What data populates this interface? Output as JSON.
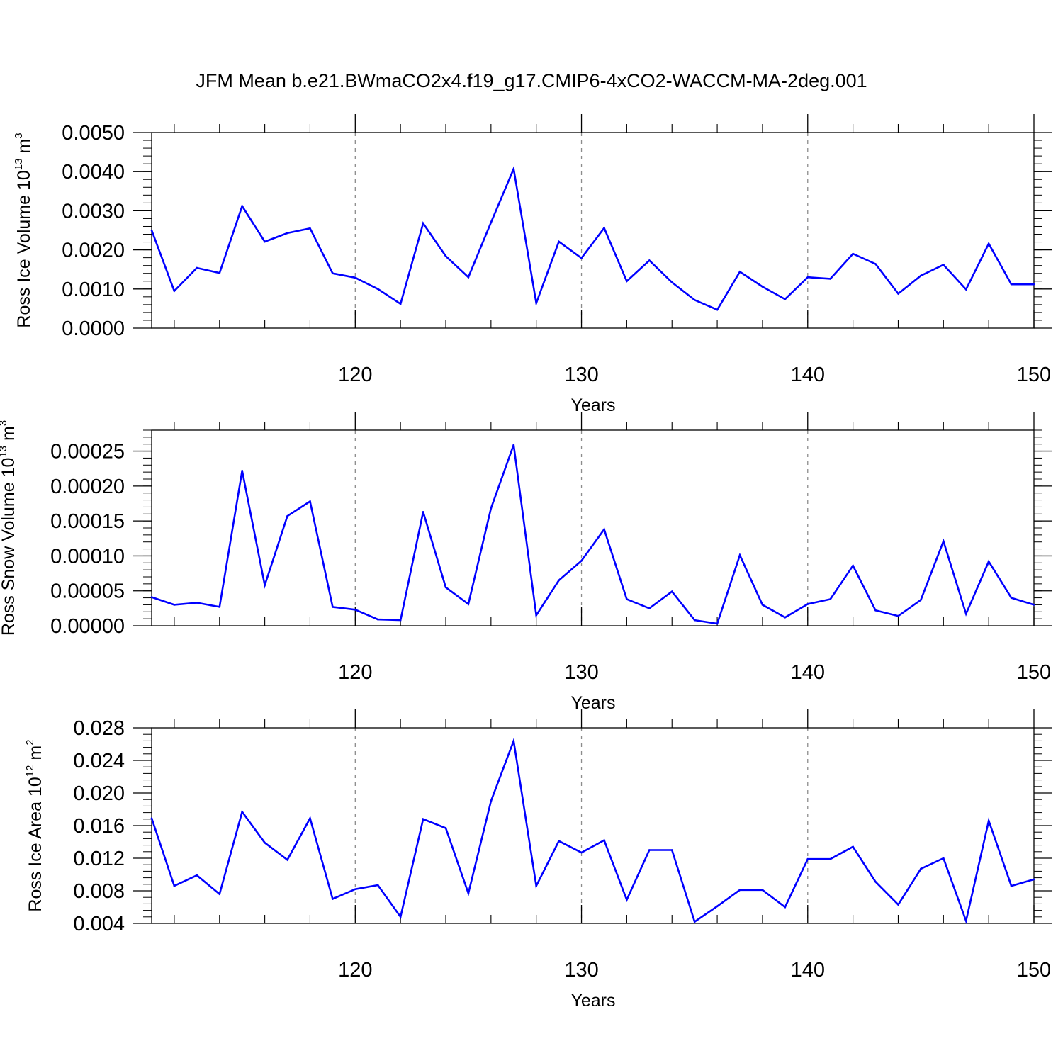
{
  "figure": {
    "title": "JFM Mean b.e21.BWmaCO2x4.f19_g17.CMIP6-4xCO2-WACCM-MA-2deg.001"
  },
  "colors": {
    "line": "#0000ff",
    "axis": "#000000",
    "grid": "#8c8c8c"
  },
  "chart_data": [
    {
      "type": "line",
      "xlabel": "Years",
      "ylabel": {
        "prefix": "Ross Ice Volume 10",
        "exp": "13",
        "unit": " m",
        "unit_exp": "3"
      },
      "xlim": [
        111,
        150
      ],
      "ylim": [
        0,
        0.005
      ],
      "x_ticks": [
        "120",
        "130",
        "140",
        "150"
      ],
      "y_ticks": [
        "0.0000",
        "0.0010",
        "0.0020",
        "0.0030",
        "0.0040",
        "0.0050"
      ],
      "grid": "dashed vertical at major x ticks",
      "x": [
        111,
        112,
        113,
        114,
        115,
        116,
        117,
        118,
        119,
        120,
        121,
        122,
        123,
        124,
        125,
        126,
        127,
        128,
        129,
        130,
        131,
        132,
        133,
        134,
        135,
        136,
        137,
        138,
        139,
        140,
        141,
        142,
        143,
        144,
        145,
        146,
        147,
        148,
        149,
        150
      ],
      "values": [
        0.0025,
        0.00095,
        0.00154,
        0.00141,
        0.00312,
        0.00221,
        0.00243,
        0.00255,
        0.0014,
        0.00129,
        0.001,
        0.00062,
        0.00268,
        0.00184,
        0.0013,
        0.0027,
        0.00407,
        0.00064,
        0.00221,
        0.00179,
        0.00256,
        0.0012,
        0.00173,
        0.00117,
        0.00072,
        0.00047,
        0.00144,
        0.00106,
        0.00074,
        0.0013,
        0.00126,
        0.0019,
        0.00164,
        0.00088,
        0.00134,
        0.00162,
        0.00099,
        0.00216,
        0.00112,
        0.00112
      ]
    },
    {
      "type": "line",
      "xlabel": "Years",
      "ylabel": {
        "prefix": "Ross Snow Volume 10",
        "exp": "13",
        "unit": " m",
        "unit_exp": "3"
      },
      "xlim": [
        111,
        150
      ],
      "ylim": [
        0,
        0.00028
      ],
      "x_ticks": [
        "120",
        "130",
        "140",
        "150"
      ],
      "y_ticks": [
        "0.00000",
        "0.00005",
        "0.00010",
        "0.00015",
        "0.00020",
        "0.00025"
      ],
      "y_tick_values": [
        0,
        5e-05,
        0.0001,
        0.00015,
        0.0002,
        0.00025
      ],
      "grid": "dashed vertical at major x ticks",
      "x": [
        111,
        112,
        113,
        114,
        115,
        116,
        117,
        118,
        119,
        120,
        121,
        122,
        123,
        124,
        125,
        126,
        127,
        128,
        129,
        130,
        131,
        132,
        133,
        134,
        135,
        136,
        137,
        138,
        139,
        140,
        141,
        142,
        143,
        144,
        145,
        146,
        147,
        148,
        149,
        150
      ],
      "values": [
        4.1e-05,
        3e-05,
        3.3e-05,
        2.7e-05,
        0.000222,
        5.8e-05,
        0.000157,
        0.000178,
        2.7e-05,
        2.3e-05,
        9e-06,
        8e-06,
        0.000163,
        5.5e-05,
        3.1e-05,
        0.000168,
        0.000259,
        1.5e-05,
        6.5e-05,
        9.3e-05,
        0.000138,
        3.8e-05,
        2.5e-05,
        4.9e-05,
        8e-06,
        3e-06,
        0.000101,
        3e-05,
        1.2e-05,
        3.1e-05,
        3.8e-05,
        8.6e-05,
        2.2e-05,
        1.4e-05,
        3.7e-05,
        0.000121,
        1.7e-05,
        9.2e-05,
        4e-05,
        3e-05
      ]
    },
    {
      "type": "line",
      "xlabel": "Years",
      "ylabel": {
        "prefix": "Ross Ice Area 10",
        "exp": "12",
        "unit": " m",
        "unit_exp": "2"
      },
      "xlim": [
        111,
        150
      ],
      "ylim": [
        0.004,
        0.028
      ],
      "x_ticks": [
        "120",
        "130",
        "140",
        "150"
      ],
      "y_ticks": [
        "0.004",
        "0.008",
        "0.012",
        "0.016",
        "0.020",
        "0.024",
        "0.028"
      ],
      "grid": "dashed vertical at major x ticks",
      "x": [
        111,
        112,
        113,
        114,
        115,
        116,
        117,
        118,
        119,
        120,
        121,
        122,
        123,
        124,
        125,
        126,
        127,
        128,
        129,
        130,
        131,
        132,
        133,
        134,
        135,
        136,
        137,
        138,
        139,
        140,
        141,
        142,
        143,
        144,
        145,
        146,
        147,
        148,
        149,
        150
      ],
      "values": [
        0.0169,
        0.0086,
        0.0099,
        0.0076,
        0.0177,
        0.0139,
        0.0118,
        0.0169,
        0.007,
        0.0082,
        0.0087,
        0.0048,
        0.0168,
        0.0157,
        0.0077,
        0.019,
        0.0264,
        0.0086,
        0.0141,
        0.0127,
        0.0142,
        0.0069,
        0.013,
        0.013,
        0.0042,
        0.0061,
        0.0081,
        0.0081,
        0.006,
        0.0119,
        0.0119,
        0.0134,
        0.0091,
        0.0063,
        0.0107,
        0.012,
        0.0043,
        0.0166,
        0.0086,
        0.0094
      ]
    }
  ]
}
